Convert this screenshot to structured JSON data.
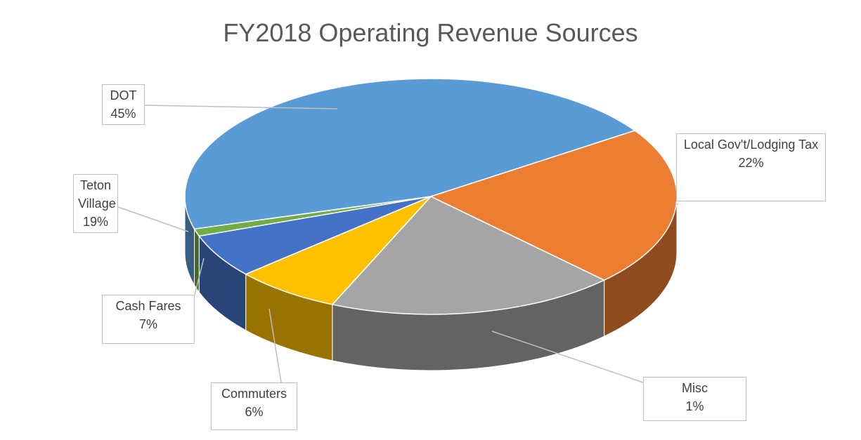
{
  "chart_data": {
    "type": "pie",
    "title": "FY2018 Operating Revenue Sources",
    "categories": [
      "DOT",
      "Local Gov't/Lodging Tax",
      "Teton Village",
      "Cash Fares",
      "Commuters",
      "Misc"
    ],
    "values": [
      45,
      22,
      19,
      7,
      6,
      1
    ],
    "value_labels": [
      "45%",
      "22%",
      "19%",
      "7%",
      "6%",
      "1%"
    ],
    "colors": [
      "#5b9bd5",
      "#ed7d31",
      "#a5a5a5",
      "#ffc000",
      "#4472c4",
      "#70ad47"
    ]
  }
}
